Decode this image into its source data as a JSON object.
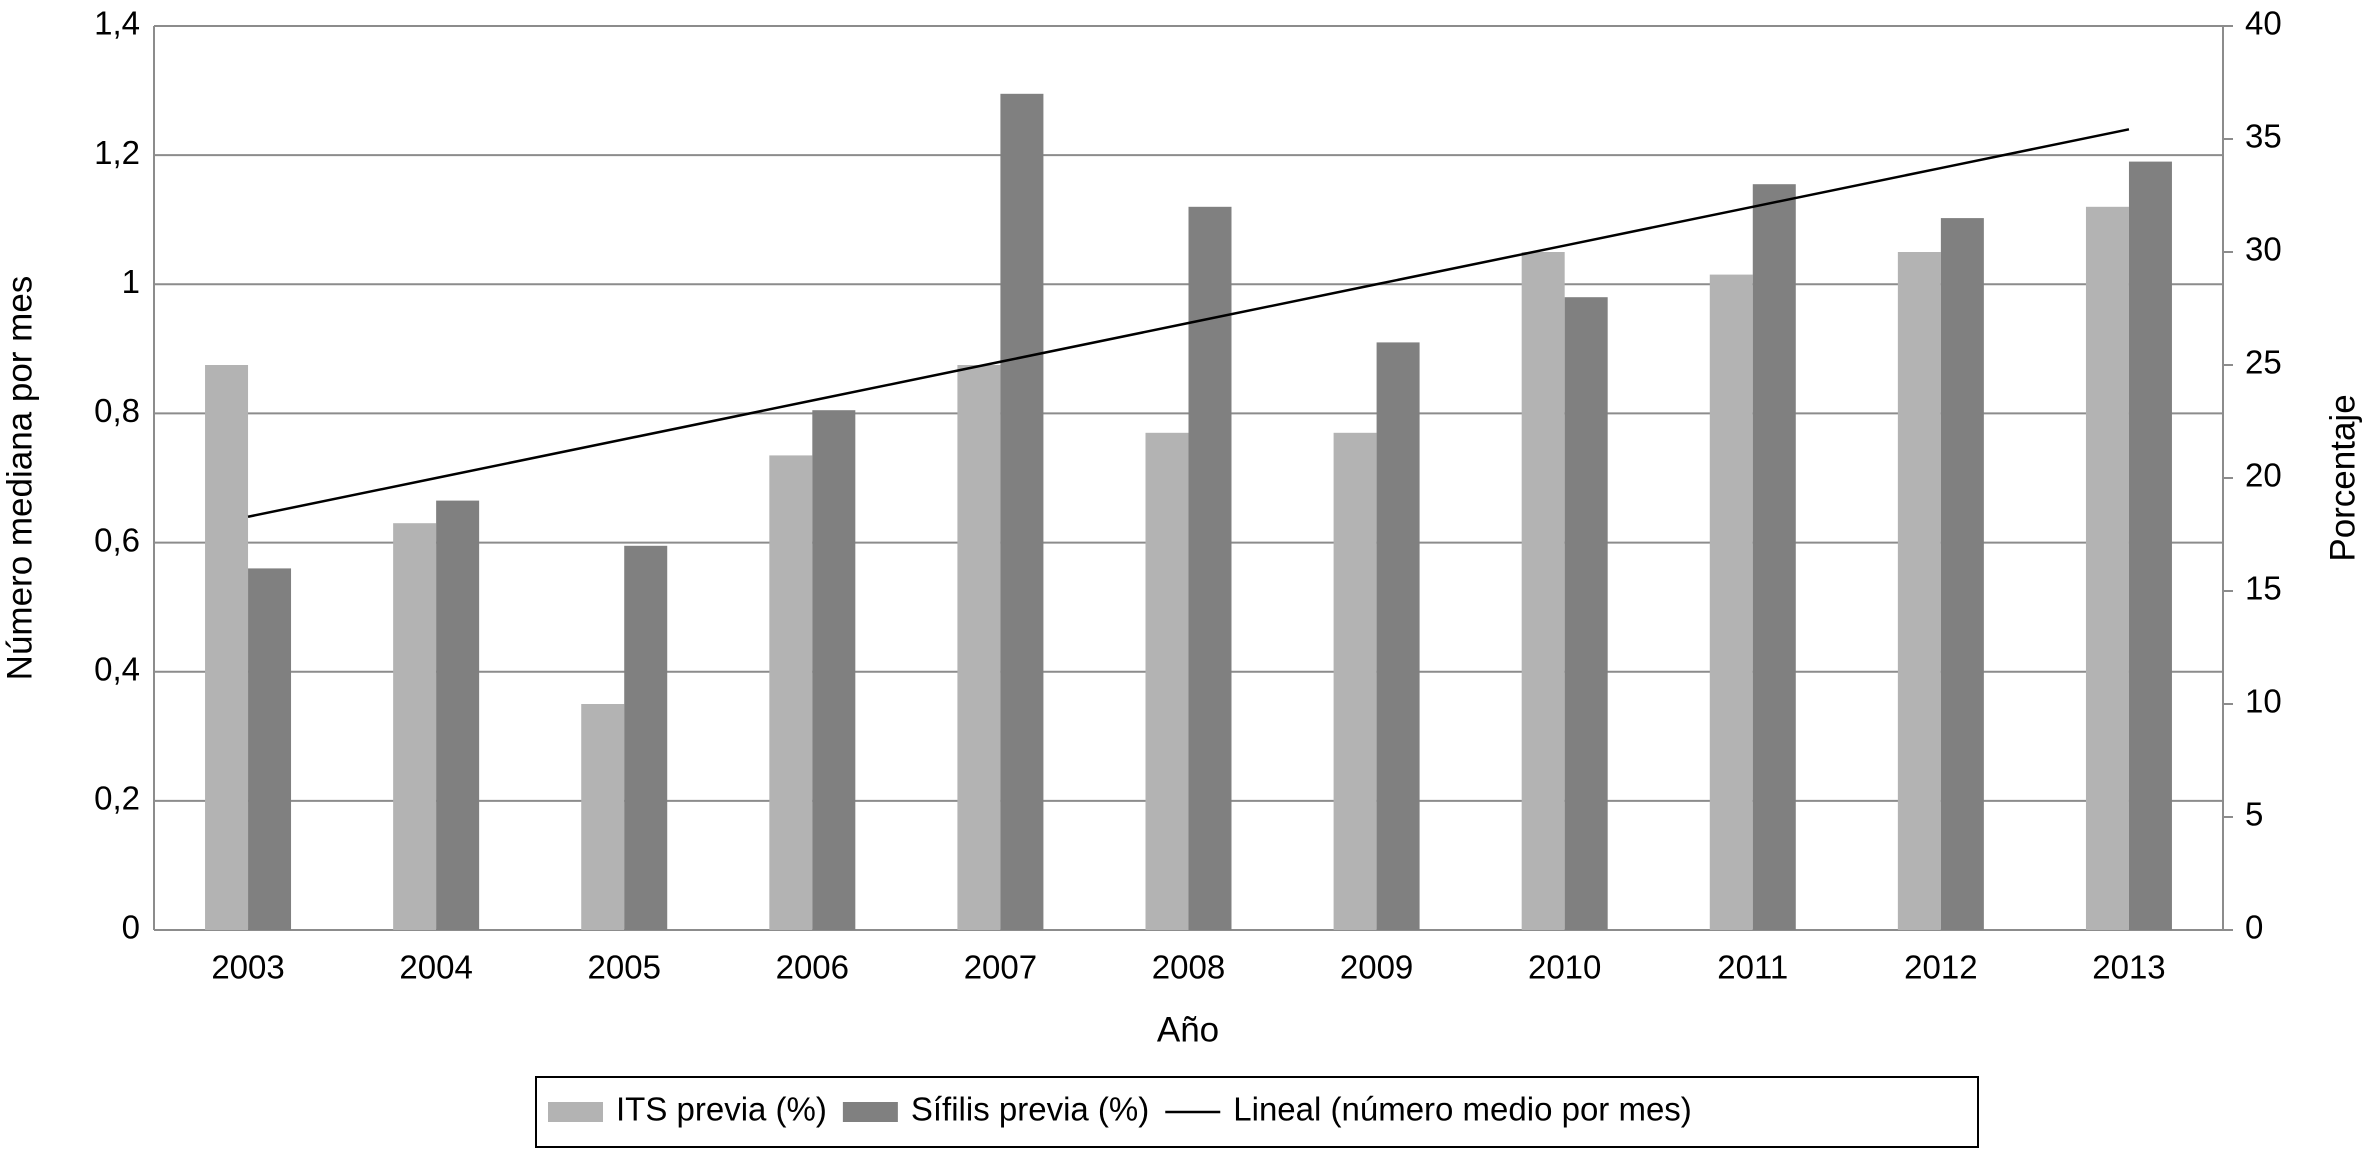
{
  "chart_data": {
    "type": "bar",
    "x_label": "Año",
    "y_label": "Número mediana por mes",
    "y2_label": "Porcentaje",
    "categories": [
      "2003",
      "2004",
      "2005",
      "2006",
      "2007",
      "2008",
      "2009",
      "2010",
      "2011",
      "2012",
      "2013"
    ],
    "series": [
      {
        "name": "ITS previa (%)",
        "color": "#b3b3b3",
        "axis": "y2",
        "type": "bar",
        "values": [
          25,
          18,
          10,
          21,
          25,
          22,
          22,
          30,
          29,
          30,
          32
        ]
      },
      {
        "name": "Sífilis previa (%)",
        "color": "#808080",
        "axis": "y2",
        "type": "bar",
        "values": [
          16,
          19,
          17,
          23,
          37,
          32,
          26,
          28,
          33,
          31.5,
          34
        ]
      },
      {
        "name": "Lineal (número medio por mes)",
        "color": "#000000",
        "axis": "y",
        "type": "line",
        "values": [
          0.64,
          0.7,
          0.76,
          0.82,
          0.88,
          0.94,
          1.0,
          1.06,
          1.12,
          1.18,
          1.24
        ]
      }
    ],
    "ylim": [
      0,
      1.4
    ],
    "yticks": [
      0,
      {
        "value": 0.2,
        "label": "0,2"
      },
      {
        "value": 0.4,
        "label": "0,4"
      },
      {
        "value": 0.6,
        "label": "0,6"
      },
      {
        "value": 0.8,
        "label": "0,8"
      },
      1,
      {
        "value": 1.2,
        "label": "1,2"
      },
      {
        "value": 1.4,
        "label": "1,4"
      }
    ],
    "y2lim": [
      0,
      40
    ],
    "y2ticks": [
      0,
      5,
      10,
      15,
      20,
      25,
      30,
      35,
      40
    ],
    "grid": true,
    "legend": "bottom"
  }
}
